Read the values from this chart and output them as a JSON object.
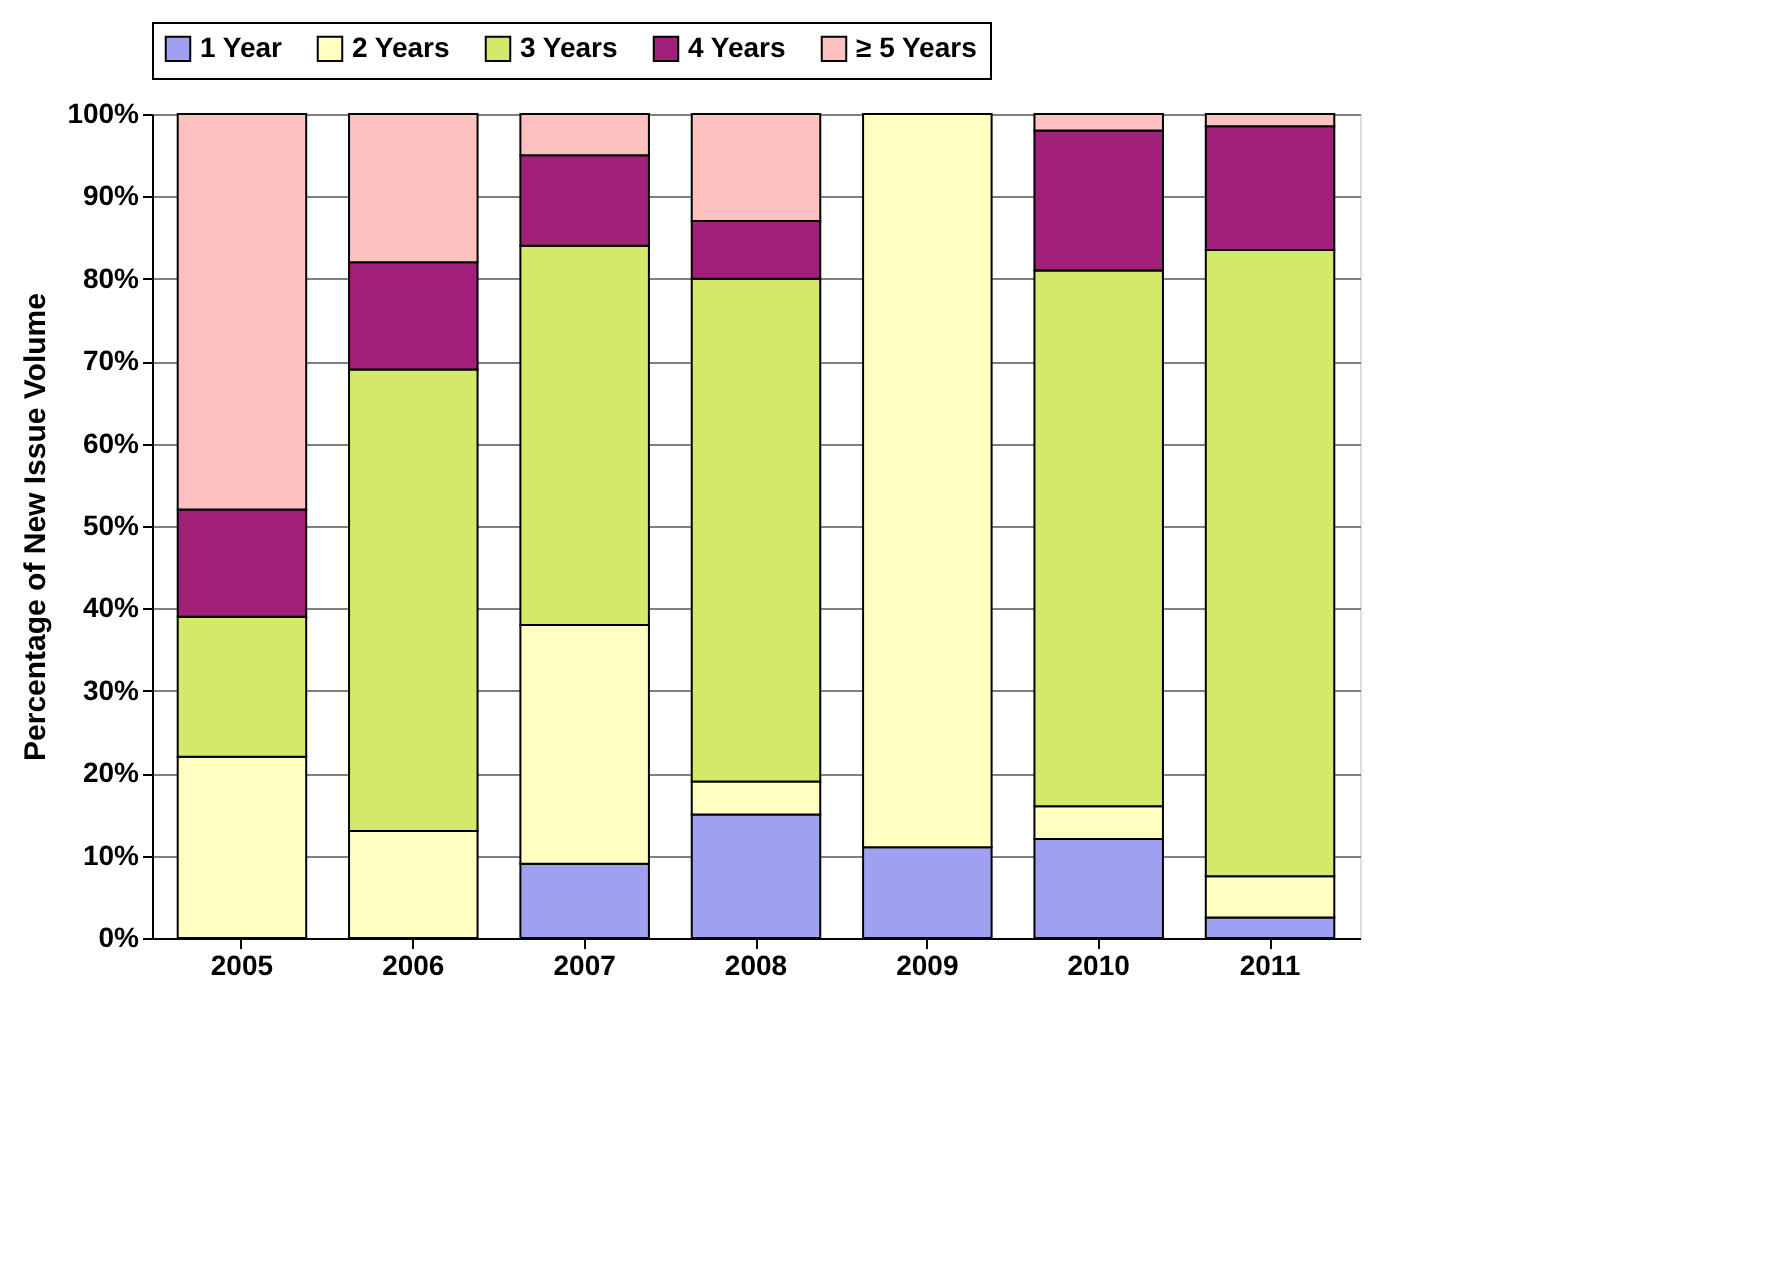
{
  "chart_data": {
    "type": "bar",
    "stacked": true,
    "ylabel": "Percentage of New Issue Volume",
    "categories": [
      "2005",
      "2006",
      "2007",
      "2008",
      "2009",
      "2010",
      "2011"
    ],
    "series": [
      {
        "name": "1 Year",
        "color": "#a0a0f0",
        "values": [
          0,
          0,
          9,
          15,
          11,
          12,
          2.5
        ]
      },
      {
        "name": "2 Years",
        "color": "#ffffc0",
        "values": [
          22,
          13,
          29,
          4,
          89,
          4,
          5
        ]
      },
      {
        "name": "3 Years",
        "color": "#d4e86a",
        "values": [
          17,
          56,
          46,
          61,
          0,
          65,
          76
        ]
      },
      {
        "name": "4 Years",
        "color": "#a0207a",
        "values": [
          13,
          13,
          11,
          7,
          0,
          17,
          15
        ]
      },
      {
        "name": "≥ 5 Years",
        "color": "#ffc0c0",
        "values": [
          48,
          18,
          5,
          13,
          0,
          2,
          1.5
        ]
      }
    ],
    "ylim": [
      0,
      100
    ],
    "yticks": [
      {
        "value": 0,
        "label": "0%"
      },
      {
        "value": 10,
        "label": "10%"
      },
      {
        "value": 20,
        "label": "20%"
      },
      {
        "value": 30,
        "label": "30%"
      },
      {
        "value": 40,
        "label": "40%"
      },
      {
        "value": 50,
        "label": "50%"
      },
      {
        "value": 60,
        "label": "60%"
      },
      {
        "value": 70,
        "label": "70%"
      },
      {
        "value": 80,
        "label": "80%"
      },
      {
        "value": 90,
        "label": "90%"
      },
      {
        "value": 100,
        "label": "100%"
      }
    ],
    "grid": "y",
    "legend": "top"
  }
}
